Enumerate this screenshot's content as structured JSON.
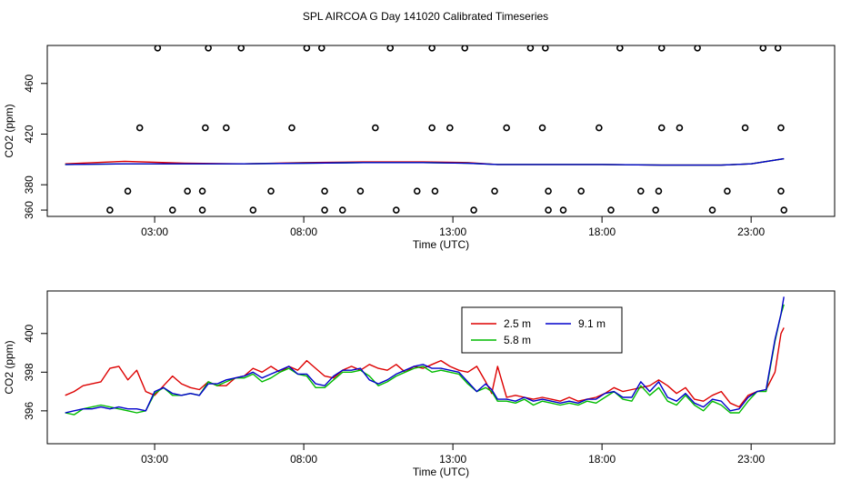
{
  "title": "SPL AIRCOA G  Day 141020  Calibrated Timeseries",
  "colors": {
    "s25": "#dd0000",
    "s58": "#00bb00",
    "s91": "#0000cc",
    "axis": "#000000"
  },
  "chart_data": [
    {
      "type": "scatter",
      "ylabel": "CO2 (ppm)",
      "xlabel": "Time (UTC)",
      "xlim": [
        -0.6,
        25.8
      ],
      "ylim": [
        355,
        490
      ],
      "xticks": [
        3,
        8,
        13,
        18,
        23
      ],
      "xtick_labels": [
        "03:00",
        "08:00",
        "13:00",
        "18:00",
        "23:00"
      ],
      "yticks": [
        360,
        380,
        420,
        460
      ],
      "ytick_labels": [
        "360",
        "380",
        "420",
        "460"
      ],
      "points": [
        [
          1.5,
          360
        ],
        [
          2.1,
          375
        ],
        [
          2.5,
          425
        ],
        [
          3.1,
          488
        ],
        [
          3.6,
          360
        ],
        [
          4.1,
          375
        ],
        [
          4.6,
          375
        ],
        [
          4.6,
          360
        ],
        [
          4.7,
          425
        ],
        [
          4.8,
          488
        ],
        [
          5.4,
          425
        ],
        [
          5.9,
          488
        ],
        [
          6.3,
          360
        ],
        [
          6.9,
          375
        ],
        [
          7.6,
          425
        ],
        [
          8.1,
          488
        ],
        [
          8.6,
          488
        ],
        [
          8.7,
          375
        ],
        [
          8.7,
          360
        ],
        [
          9.3,
          360
        ],
        [
          9.9,
          375
        ],
        [
          10.4,
          425
        ],
        [
          10.9,
          488
        ],
        [
          11.1,
          360
        ],
        [
          11.8,
          375
        ],
        [
          12.3,
          425
        ],
        [
          12.3,
          488
        ],
        [
          12.4,
          375
        ],
        [
          12.9,
          425
        ],
        [
          13.4,
          488
        ],
        [
          13.7,
          360
        ],
        [
          14.4,
          375
        ],
        [
          14.8,
          425
        ],
        [
          15.6,
          488
        ],
        [
          16.0,
          425
        ],
        [
          16.1,
          488
        ],
        [
          16.2,
          375
        ],
        [
          16.2,
          360
        ],
        [
          16.7,
          360
        ],
        [
          17.3,
          375
        ],
        [
          17.9,
          425
        ],
        [
          18.3,
          360
        ],
        [
          18.6,
          488
        ],
        [
          19.3,
          375
        ],
        [
          19.8,
          360
        ],
        [
          19.9,
          375
        ],
        [
          20.0,
          425
        ],
        [
          20.0,
          488
        ],
        [
          20.6,
          425
        ],
        [
          21.2,
          488
        ],
        [
          21.7,
          360
        ],
        [
          22.2,
          375
        ],
        [
          22.8,
          425
        ],
        [
          23.4,
          488
        ],
        [
          23.9,
          488
        ],
        [
          24.0,
          425
        ],
        [
          24.0,
          375
        ],
        [
          24.1,
          360
        ]
      ],
      "series": [
        {
          "name": "2.5 m",
          "color": "#dd0000",
          "x": [
            0,
            2,
            4,
            6,
            8,
            10,
            12,
            13.5,
            14.5,
            16,
            18,
            20,
            22,
            23,
            24.1
          ],
          "y": [
            396.5,
            398.5,
            397,
            396.5,
            397.5,
            398,
            398,
            397.5,
            396,
            396,
            396,
            395.5,
            395.5,
            396.5,
            400.5
          ]
        },
        {
          "name": "5.8 m",
          "color": "#00bb00",
          "x": [
            0,
            2,
            4,
            6,
            8,
            10,
            12,
            13.5,
            14.5,
            16,
            18,
            20,
            22,
            23,
            24.1
          ],
          "y": [
            396,
            396.5,
            396.5,
            396.5,
            397,
            397.5,
            397.5,
            397,
            396,
            396,
            396,
            395.5,
            395.5,
            396.5,
            400.5
          ]
        },
        {
          "name": "9.1 m",
          "color": "#0000cc",
          "x": [
            0,
            2,
            4,
            6,
            8,
            10,
            12,
            13.5,
            14.5,
            16,
            18,
            20,
            22,
            23,
            24.1
          ],
          "y": [
            396,
            396.5,
            396.5,
            396.5,
            397,
            397.5,
            397.5,
            397,
            396,
            396,
            396,
            395.5,
            395.5,
            396.5,
            400.5
          ]
        }
      ]
    },
    {
      "type": "line",
      "ylabel": "CO2 (ppm)",
      "xlabel": "Time (UTC)",
      "xlim": [
        -0.6,
        25.8
      ],
      "ylim": [
        394.3,
        402.2
      ],
      "xticks": [
        3,
        8,
        13,
        18,
        23
      ],
      "xtick_labels": [
        "03:00",
        "08:00",
        "13:00",
        "18:00",
        "23:00"
      ],
      "yticks": [
        396,
        398,
        400
      ],
      "ytick_labels": [
        "396",
        "398",
        "400"
      ],
      "legend": "top-center",
      "series": [
        {
          "name": "2.5 m",
          "color": "#dd0000",
          "x": [
            0,
            0.3,
            0.6,
            0.9,
            1.2,
            1.5,
            1.8,
            2.1,
            2.4,
            2.7,
            3.0,
            3.3,
            3.6,
            3.9,
            4.2,
            4.5,
            4.8,
            5.1,
            5.4,
            5.7,
            6.0,
            6.3,
            6.6,
            6.9,
            7.2,
            7.5,
            7.8,
            8.1,
            8.4,
            8.7,
            9.0,
            9.3,
            9.6,
            9.9,
            10.2,
            10.5,
            10.8,
            11.1,
            11.4,
            11.7,
            12.0,
            12.3,
            12.6,
            12.9,
            13.2,
            13.5,
            13.8,
            14.1,
            14.3,
            14.5,
            14.8,
            15.1,
            15.4,
            15.7,
            16.0,
            16.3,
            16.6,
            16.9,
            17.2,
            17.5,
            17.8,
            18.1,
            18.4,
            18.7,
            19.0,
            19.3,
            19.6,
            19.9,
            20.2,
            20.5,
            20.8,
            21.1,
            21.4,
            21.7,
            22.0,
            22.3,
            22.6,
            22.9,
            23.2,
            23.5,
            23.8,
            24.0,
            24.1
          ],
          "y": [
            396.8,
            397.0,
            397.3,
            397.4,
            397.5,
            398.2,
            398.3,
            397.6,
            398.1,
            397.0,
            396.8,
            397.3,
            397.8,
            397.4,
            397.2,
            397.1,
            397.5,
            397.3,
            397.3,
            397.7,
            397.8,
            398.2,
            398.0,
            398.3,
            398.0,
            398.3,
            398.1,
            398.6,
            398.2,
            397.8,
            397.7,
            398.1,
            398.3,
            398.1,
            398.4,
            398.2,
            398.1,
            398.4,
            398.0,
            398.3,
            398.2,
            398.4,
            398.6,
            398.3,
            398.1,
            398.0,
            398.3,
            397.5,
            396.9,
            398.3,
            396.7,
            396.8,
            396.7,
            396.6,
            396.7,
            396.6,
            396.5,
            396.7,
            396.5,
            396.6,
            396.7,
            396.9,
            397.2,
            397.0,
            397.1,
            397.2,
            397.3,
            397.6,
            397.3,
            396.9,
            397.2,
            396.6,
            396.5,
            396.8,
            397.0,
            396.4,
            396.2,
            396.8,
            397.0,
            397.1,
            398.0,
            400.0,
            400.3
          ]
        },
        {
          "name": "5.8 m",
          "color": "#00bb00",
          "x": [
            0,
            0.3,
            0.6,
            0.9,
            1.2,
            1.5,
            1.8,
            2.1,
            2.4,
            2.7,
            3.0,
            3.3,
            3.6,
            3.9,
            4.2,
            4.5,
            4.8,
            5.1,
            5.4,
            5.7,
            6.0,
            6.3,
            6.6,
            6.9,
            7.2,
            7.5,
            7.8,
            8.1,
            8.4,
            8.7,
            9.0,
            9.3,
            9.6,
            9.9,
            10.2,
            10.5,
            10.8,
            11.1,
            11.4,
            11.7,
            12.0,
            12.3,
            12.6,
            12.9,
            13.2,
            13.5,
            13.8,
            14.1,
            14.3,
            14.5,
            14.8,
            15.1,
            15.4,
            15.7,
            16.0,
            16.3,
            16.6,
            16.9,
            17.2,
            17.5,
            17.8,
            18.1,
            18.4,
            18.7,
            19.0,
            19.3,
            19.6,
            19.9,
            20.2,
            20.5,
            20.8,
            21.1,
            21.4,
            21.7,
            22.0,
            22.3,
            22.6,
            22.9,
            23.2,
            23.5,
            23.8,
            24.0,
            24.1
          ],
          "y": [
            395.9,
            395.8,
            396.1,
            396.2,
            396.3,
            396.2,
            396.1,
            396.0,
            395.9,
            396.0,
            396.9,
            397.2,
            396.8,
            396.8,
            396.9,
            396.8,
            397.5,
            397.3,
            397.5,
            397.7,
            397.7,
            397.9,
            397.5,
            397.7,
            398.0,
            398.2,
            397.9,
            397.8,
            397.2,
            397.2,
            397.6,
            398.0,
            398.0,
            398.1,
            397.8,
            397.3,
            397.5,
            397.8,
            398.0,
            398.2,
            398.3,
            398.0,
            398.1,
            398.0,
            397.9,
            397.4,
            397.0,
            397.2,
            397.0,
            396.5,
            396.5,
            396.4,
            396.6,
            396.3,
            396.5,
            396.4,
            396.3,
            396.4,
            396.3,
            396.5,
            396.4,
            396.7,
            397.0,
            396.6,
            396.5,
            397.3,
            396.8,
            397.2,
            396.5,
            396.3,
            396.8,
            396.3,
            396.0,
            396.5,
            396.3,
            395.9,
            395.9,
            396.5,
            397.0,
            397.0,
            399.6,
            401.0,
            401.5
          ]
        },
        {
          "name": "9.1 m",
          "color": "#0000cc",
          "x": [
            0,
            0.3,
            0.6,
            0.9,
            1.2,
            1.5,
            1.8,
            2.1,
            2.4,
            2.7,
            3.0,
            3.3,
            3.6,
            3.9,
            4.2,
            4.5,
            4.8,
            5.1,
            5.4,
            5.7,
            6.0,
            6.3,
            6.6,
            6.9,
            7.2,
            7.5,
            7.8,
            8.1,
            8.4,
            8.7,
            9.0,
            9.3,
            9.6,
            9.9,
            10.2,
            10.5,
            10.8,
            11.1,
            11.4,
            11.7,
            12.0,
            12.3,
            12.6,
            12.9,
            13.2,
            13.5,
            13.8,
            14.1,
            14.3,
            14.5,
            14.8,
            15.1,
            15.4,
            15.7,
            16.0,
            16.3,
            16.6,
            16.9,
            17.2,
            17.5,
            17.8,
            18.1,
            18.4,
            18.7,
            19.0,
            19.3,
            19.6,
            19.9,
            20.2,
            20.5,
            20.8,
            21.1,
            21.4,
            21.7,
            22.0,
            22.3,
            22.6,
            22.9,
            23.2,
            23.5,
            23.8,
            24.0,
            24.1
          ],
          "y": [
            395.9,
            396.0,
            396.1,
            396.1,
            396.2,
            396.1,
            396.2,
            396.1,
            396.1,
            396.0,
            397.0,
            397.2,
            396.9,
            396.8,
            396.9,
            396.8,
            397.4,
            397.4,
            397.6,
            397.7,
            397.8,
            398.0,
            397.7,
            397.9,
            398.1,
            398.3,
            397.9,
            397.9,
            397.4,
            397.3,
            397.8,
            398.1,
            398.1,
            398.2,
            397.6,
            397.4,
            397.6,
            397.9,
            398.1,
            398.3,
            398.4,
            398.2,
            398.2,
            398.1,
            398.0,
            397.5,
            397.0,
            397.4,
            397.1,
            396.6,
            396.6,
            396.5,
            396.7,
            396.5,
            396.6,
            396.5,
            396.4,
            396.5,
            396.4,
            396.6,
            396.6,
            396.9,
            397.0,
            396.7,
            396.7,
            397.5,
            397.0,
            397.5,
            396.7,
            396.5,
            396.9,
            396.4,
            396.2,
            396.6,
            396.5,
            396.0,
            396.1,
            396.7,
            397.0,
            397.1,
            399.7,
            401.0,
            401.9
          ]
        }
      ]
    }
  ]
}
